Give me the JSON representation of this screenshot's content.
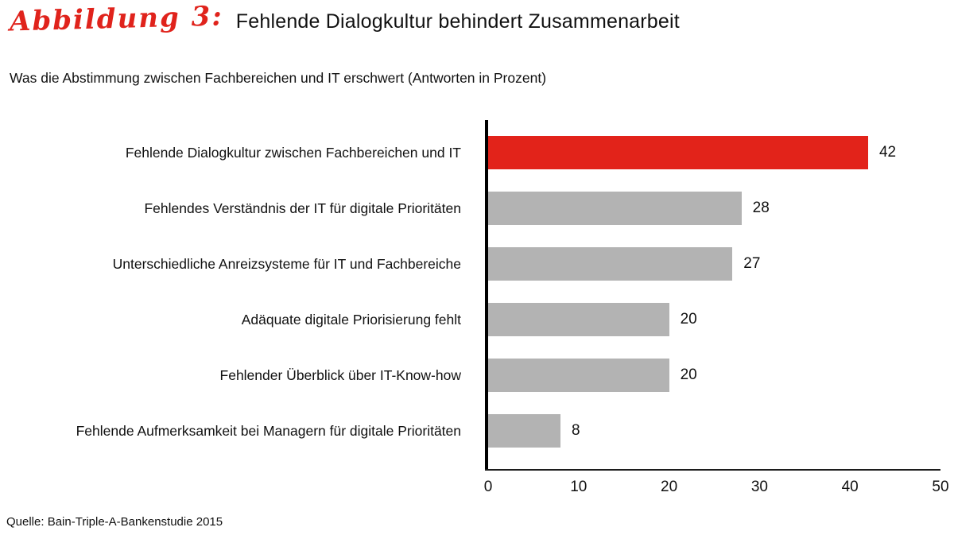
{
  "header": {
    "figure_label": "Abbildung 3:",
    "title": "Fehlende Dialogkultur behindert Zusammenarbeit",
    "subtitle": "Was die Abstimmung zwischen Fachbereichen und IT erschwert (Antworten in Prozent)"
  },
  "chart_data": {
    "type": "bar",
    "orientation": "horizontal",
    "title": "Fehlende Dialogkultur behindert Zusammenarbeit",
    "subtitle": "Was die Abstimmung zwischen Fachbereichen und IT erschwert (Antworten in Prozent)",
    "categories": [
      "Fehlende Dialogkultur zwischen Fachbereichen und IT",
      "Fehlendes Verständnis der IT für digitale Prioritäten",
      "Unterschiedliche Anreizsysteme für IT und Fachbereiche",
      "Adäquate digitale Priorisierung fehlt",
      "Fehlender Überblick über IT-Know-how",
      "Fehlende Aufmerksamkeit bei Managern für digitale Prioritäten"
    ],
    "values": [
      42,
      28,
      27,
      20,
      20,
      8
    ],
    "bar_colors": [
      "#e2231a",
      "#b3b3b3",
      "#b3b3b3",
      "#b3b3b3",
      "#b3b3b3",
      "#b3b3b3"
    ],
    "highlight_color": "#e2231a",
    "default_bar_color": "#b3b3b3",
    "xlabel": "",
    "ylabel": "",
    "xlim": [
      0,
      50
    ],
    "x_ticks": [
      0,
      10,
      20,
      30,
      40,
      50
    ],
    "grid": "off",
    "legend": "none",
    "value_labels_shown": true
  },
  "footer": {
    "source": "Quelle: Bain-Triple-A-Bankenstudie 2015"
  }
}
